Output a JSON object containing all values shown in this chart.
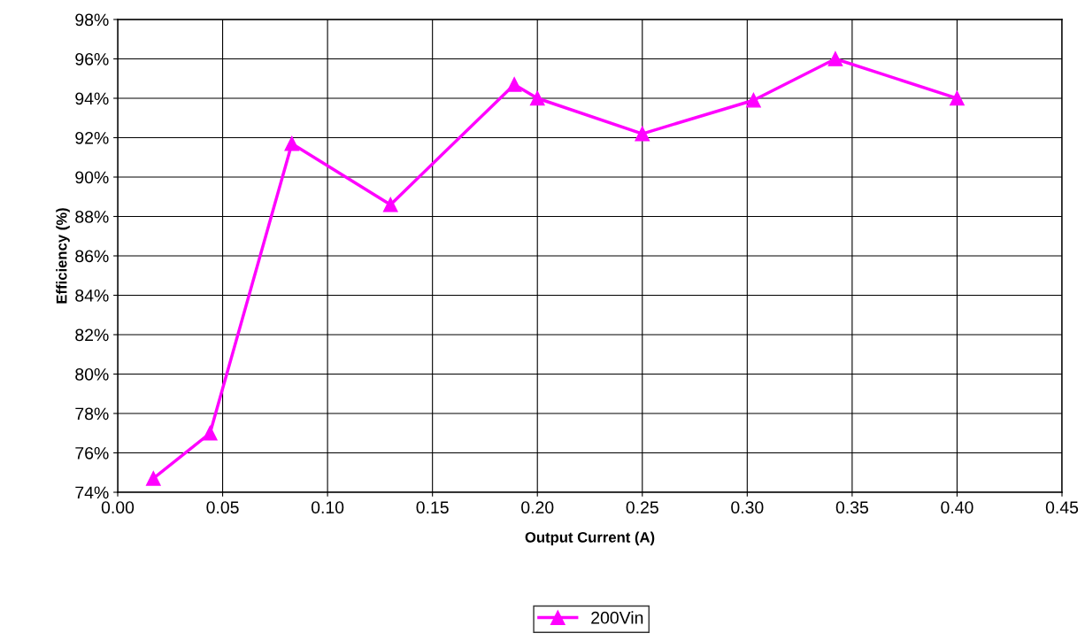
{
  "chart_data": {
    "type": "line",
    "xlabel": "Output Current (A)",
    "ylabel": "Efficiency (%)",
    "x": [
      0.017,
      0.044,
      0.083,
      0.13,
      0.189,
      0.2,
      0.25,
      0.303,
      0.342,
      0.4
    ],
    "series": [
      {
        "name": "200Vin",
        "color": "#ff00ff",
        "values": [
          74.7,
          77.0,
          91.7,
          88.6,
          94.7,
          94.0,
          92.2,
          93.9,
          96.0,
          94.0
        ]
      }
    ],
    "xlim": [
      0,
      0.45
    ],
    "xticks": [
      {
        "value": 0,
        "label": "0.00"
      },
      {
        "value": 0.05,
        "label": "0.05"
      },
      {
        "value": 0.1,
        "label": "0.10"
      },
      {
        "value": 0.15,
        "label": "0.15"
      },
      {
        "value": 0.2,
        "label": "0.20"
      },
      {
        "value": 0.25,
        "label": "0.25"
      },
      {
        "value": 0.3,
        "label": "0.30"
      },
      {
        "value": 0.35,
        "label": "0.35"
      },
      {
        "value": 0.4,
        "label": "0.40"
      },
      {
        "value": 0.45,
        "label": "0.45"
      }
    ],
    "ylim": [
      74,
      98
    ],
    "yticks": [
      {
        "value": 74,
        "label": "74%"
      },
      {
        "value": 76,
        "label": "76%"
      },
      {
        "value": 78,
        "label": "78%"
      },
      {
        "value": 80,
        "label": "80%"
      },
      {
        "value": 82,
        "label": "82%"
      },
      {
        "value": 84,
        "label": "84%"
      },
      {
        "value": 86,
        "label": "86%"
      },
      {
        "value": 88,
        "label": "88%"
      },
      {
        "value": 90,
        "label": "90%"
      },
      {
        "value": 92,
        "label": "92%"
      },
      {
        "value": 94,
        "label": "94%"
      },
      {
        "value": 96,
        "label": "96%"
      },
      {
        "value": 98,
        "label": "98%"
      }
    ],
    "grid": true,
    "legend": "bottom",
    "marker": "triangle",
    "line_style": "solid"
  }
}
